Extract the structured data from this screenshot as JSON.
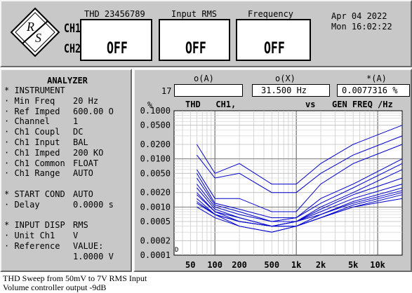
{
  "header": {
    "ch1_label": "CH1",
    "ch2_label": "CH2",
    "displays": [
      {
        "title": "THD 23456789",
        "value": "OFF"
      },
      {
        "title": "Input RMS",
        "value": "OFF"
      },
      {
        "title": "Frequency",
        "value": "OFF"
      }
    ],
    "date": "Apr 04 2022",
    "time": "Mon 16:02:22"
  },
  "analyzer": {
    "title": "ANALYZER",
    "rows": [
      {
        "label": "* INSTRUMENT",
        "value": ""
      },
      {
        "label": "· Min Freq",
        "value": "20 Hz"
      },
      {
        "label": "· Ref Imped",
        "value": "600.00 O"
      },
      {
        "label": "· Channel",
        "value": "1"
      },
      {
        "label": "· Ch1 Coupl",
        "value": "DC"
      },
      {
        "label": "· Ch1 Input",
        "value": "BAL"
      },
      {
        "label": "· Ch1 Imped",
        "value": "200 KO"
      },
      {
        "label": "· Ch1 Common",
        "value": "FLOAT"
      },
      {
        "label": "· Ch1 Range",
        "value": "AUTO"
      },
      {
        "label": "",
        "value": ""
      },
      {
        "label": "* START COND",
        "value": "AUTO"
      },
      {
        "label": "· Delay",
        "value": "0.0000 s"
      },
      {
        "label": "",
        "value": ""
      },
      {
        "label": "* INPUT DISP",
        "value": "RMS"
      },
      {
        "label": "· Unit Ch1",
        "value": "V"
      },
      {
        "label": "· Reference",
        "value": "VALUE:"
      },
      {
        "label": "",
        "value": "1.0000 V"
      }
    ]
  },
  "graph": {
    "col_o_a": "o(A)",
    "col_o_x": "o(X)",
    "col_star_a": "*(A)",
    "cursor_index": "17",
    "o_a_value": "",
    "o_x_value": "31.500  Hz",
    "star_a_value": "0.0077316 %",
    "y_unit": "%",
    "trace_label": "THD   CH1,",
    "vs_label": "vs",
    "x_label": "GEN FREQ  /Hz",
    "marker": "D"
  },
  "chart_data": {
    "type": "line",
    "x_scale": "log",
    "y_scale": "log",
    "xlim": [
      31.5,
      20000
    ],
    "ylim": [
      0.0001,
      0.1
    ],
    "yticks": [
      "0.1000",
      "0.0500",
      "0.0200",
      "0.0100",
      "0.0050",
      "0.0020",
      "0.0010",
      "0.0005",
      "0.0002",
      "0.0001"
    ],
    "xticks": [
      "50",
      "100",
      "200",
      "500",
      "1k",
      "2k",
      "5k",
      "10k"
    ],
    "grid": true,
    "color": "#0000cc",
    "x": [
      60,
      100,
      200,
      500,
      1000,
      2000,
      5000,
      20000
    ],
    "series": [
      {
        "values": [
          0.02,
          0.005,
          0.008,
          0.003,
          0.003,
          0.008,
          0.02,
          0.05
        ]
      },
      {
        "values": [
          0.012,
          0.004,
          0.005,
          0.002,
          0.002,
          0.005,
          0.012,
          0.03
        ]
      },
      {
        "values": [
          0.006,
          0.0015,
          0.0015,
          0.0008,
          0.0008,
          0.003,
          0.008,
          0.02
        ]
      },
      {
        "values": [
          0.005,
          0.0012,
          0.0009,
          0.0006,
          0.0006,
          0.0015,
          0.003,
          0.01
        ]
      },
      {
        "values": [
          0.004,
          0.0011,
          0.0008,
          0.0005,
          0.0006,
          0.0012,
          0.0025,
          0.008
        ]
      },
      {
        "values": [
          0.003,
          0.001,
          0.0007,
          0.0005,
          0.0005,
          0.001,
          0.002,
          0.006
        ]
      },
      {
        "values": [
          0.0025,
          0.0009,
          0.0006,
          0.0004,
          0.0005,
          0.0009,
          0.0018,
          0.004
        ]
      },
      {
        "values": [
          0.002,
          0.0008,
          0.0006,
          0.0004,
          0.0005,
          0.0008,
          0.0015,
          0.003
        ]
      },
      {
        "values": [
          0.0018,
          0.0008,
          0.0005,
          0.0004,
          0.0005,
          0.0007,
          0.0013,
          0.0025
        ]
      },
      {
        "values": [
          0.0015,
          0.0007,
          0.0005,
          0.0004,
          0.0004,
          0.0007,
          0.0012,
          0.0022
        ]
      },
      {
        "values": [
          0.0013,
          0.0007,
          0.0005,
          0.0004,
          0.0004,
          0.0006,
          0.0011,
          0.002
        ]
      },
      {
        "values": [
          0.0012,
          0.0007,
          0.0004,
          0.0003,
          0.0004,
          0.0006,
          0.001,
          0.0018
        ]
      },
      {
        "values": [
          0.001,
          0.0006,
          0.0004,
          0.0003,
          0.0004,
          0.0006,
          0.001,
          0.0015
        ]
      }
    ]
  },
  "caption": {
    "line1": "THD Sweep from 50mV to 7V RMS Input",
    "line2": "Volume controller output -9dB"
  }
}
